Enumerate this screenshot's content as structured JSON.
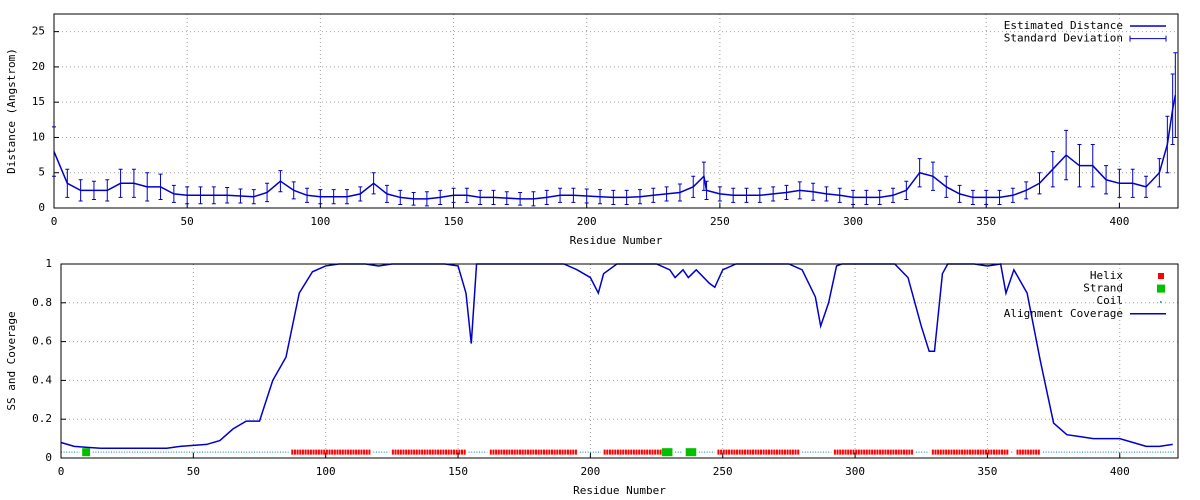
{
  "chart_data": [
    {
      "type": "line",
      "xlabel": "Residue Number",
      "ylabel": "Distance (Angstrom)",
      "xlim": [
        0,
        422
      ],
      "ylim": [
        0,
        27.5
      ],
      "xticks": [
        0,
        50,
        100,
        150,
        200,
        250,
        300,
        350,
        400
      ],
      "yticks": [
        0,
        5,
        10,
        15,
        20,
        25
      ],
      "grid": true,
      "legend": "top-right",
      "x": [
        0,
        5,
        10,
        15,
        20,
        25,
        30,
        35,
        40,
        45,
        50,
        55,
        60,
        65,
        70,
        75,
        80,
        85,
        90,
        95,
        100,
        105,
        110,
        115,
        120,
        125,
        130,
        135,
        140,
        145,
        150,
        155,
        160,
        165,
        170,
        175,
        180,
        185,
        190,
        195,
        200,
        205,
        210,
        215,
        220,
        225,
        230,
        235,
        240,
        244,
        245,
        250,
        255,
        260,
        265,
        270,
        275,
        280,
        285,
        290,
        295,
        300,
        305,
        310,
        315,
        320,
        325,
        330,
        335,
        340,
        345,
        350,
        355,
        360,
        365,
        370,
        375,
        380,
        385,
        390,
        395,
        400,
        405,
        410,
        415,
        418,
        420,
        421
      ],
      "series": [
        {
          "name": "Estimated Distance",
          "color": "#0000cc",
          "values": [
            8,
            3.5,
            2.5,
            2.5,
            2.5,
            3.5,
            3.5,
            3,
            3,
            2,
            1.8,
            1.8,
            1.8,
            1.8,
            1.7,
            1.6,
            2.2,
            3.8,
            2.5,
            1.8,
            1.6,
            1.6,
            1.6,
            2,
            3.5,
            2,
            1.5,
            1.3,
            1.3,
            1.5,
            1.8,
            1.8,
            1.5,
            1.5,
            1.4,
            1.3,
            1.3,
            1.5,
            1.8,
            1.8,
            1.7,
            1.6,
            1.5,
            1.5,
            1.6,
            1.8,
            2,
            2.2,
            3,
            4.5,
            2.5,
            2,
            1.8,
            1.8,
            1.8,
            2,
            2.2,
            2.5,
            2.3,
            2,
            1.8,
            1.5,
            1.5,
            1.5,
            1.8,
            2.5,
            5,
            4.5,
            3,
            2,
            1.5,
            1.5,
            1.5,
            1.8,
            2.5,
            3.5,
            5.5,
            7.5,
            6,
            6,
            4,
            3.5,
            3.5,
            3,
            5,
            9,
            14,
            16
          ]
        },
        {
          "name": "Standard Deviation",
          "color": "#0000cc",
          "errors": [
            3.5,
            2,
            1.5,
            1.3,
            1.5,
            2,
            2,
            2,
            1.8,
            1.2,
            1.2,
            1.2,
            1.2,
            1.1,
            1,
            1,
            1.3,
            1.5,
            1.2,
            1,
            1,
            1,
            1,
            1,
            1.5,
            1.2,
            1,
            0.9,
            1,
            1,
            1,
            1,
            1,
            1,
            0.9,
            0.9,
            1,
            1,
            1,
            1,
            1,
            1,
            1,
            1,
            1,
            1,
            1,
            1.2,
            1.5,
            2,
            1.3,
            1,
            1,
            1,
            1,
            1,
            1,
            1.2,
            1.2,
            1,
            1,
            1,
            1,
            1,
            1,
            1.3,
            2,
            2,
            1.5,
            1.2,
            1,
            1,
            1,
            1,
            1.2,
            1.5,
            2.5,
            3.5,
            3,
            3,
            2,
            2,
            2,
            1.5,
            2,
            4,
            5,
            6
          ]
        }
      ]
    },
    {
      "type": "line",
      "xlabel": "Residue Number",
      "ylabel": "SS and Coverage",
      "xlim": [
        0,
        422
      ],
      "ylim": [
        0,
        1
      ],
      "xticks": [
        0,
        50,
        100,
        150,
        200,
        250,
        300,
        350,
        400
      ],
      "yticks": [
        0,
        0.2,
        0.4,
        0.6,
        0.8,
        1
      ],
      "grid": true,
      "legend": "top-right",
      "ss": [
        {
          "name": "Helix",
          "color": "#ff0000",
          "y": 0.03,
          "ranges": [
            [
              87,
              117
            ],
            [
              125,
              153
            ],
            [
              162,
              195
            ],
            [
              205,
              227
            ],
            [
              248,
              279
            ],
            [
              292,
              322
            ],
            [
              329,
              358
            ],
            [
              361,
              370
            ]
          ]
        },
        {
          "name": "Strand",
          "color": "#00c000",
          "y": 0.03,
          "ranges": [
            [
              8,
              11
            ],
            [
              227,
              231
            ],
            [
              236,
              240
            ]
          ]
        },
        {
          "name": "Coil",
          "color": "#0080a0",
          "y": 0.03,
          "ranges": [
            [
              0,
              7
            ],
            [
              12,
              86
            ],
            [
              118,
              124
            ],
            [
              154,
              161
            ],
            [
              196,
              204
            ],
            [
              232,
              235
            ],
            [
              241,
              247
            ],
            [
              280,
              291
            ],
            [
              323,
              328
            ],
            [
              359,
              360
            ],
            [
              371,
              421
            ]
          ]
        }
      ],
      "x": [
        0,
        5,
        10,
        15,
        20,
        25,
        30,
        35,
        40,
        45,
        50,
        55,
        60,
        65,
        70,
        75,
        80,
        85,
        90,
        95,
        100,
        105,
        110,
        115,
        120,
        125,
        130,
        135,
        140,
        145,
        150,
        153,
        155,
        157,
        160,
        165,
        170,
        175,
        180,
        185,
        190,
        195,
        200,
        203,
        205,
        210,
        215,
        220,
        225,
        230,
        232,
        235,
        237,
        240,
        245,
        247,
        250,
        255,
        260,
        265,
        270,
        275,
        280,
        285,
        287,
        290,
        293,
        295,
        300,
        305,
        310,
        315,
        320,
        323,
        325,
        328,
        330,
        333,
        335,
        340,
        345,
        350,
        355,
        357,
        360,
        365,
        370,
        375,
        380,
        385,
        390,
        395,
        400,
        405,
        410,
        415,
        420
      ],
      "series": [
        {
          "name": "Alignment Coverage",
          "color": "#0000cc",
          "values": [
            0.08,
            0.06,
            0.055,
            0.05,
            0.05,
            0.05,
            0.05,
            0.05,
            0.05,
            0.06,
            0.065,
            0.07,
            0.09,
            0.15,
            0.19,
            0.19,
            0.4,
            0.52,
            0.85,
            0.96,
            0.99,
            1,
            1,
            1,
            0.99,
            1,
            1,
            1,
            1,
            1,
            0.99,
            0.85,
            0.59,
            1,
            1,
            1,
            1,
            1,
            1,
            1,
            1,
            0.97,
            0.93,
            0.85,
            0.95,
            1,
            1,
            1,
            1,
            0.97,
            0.93,
            0.97,
            0.93,
            0.97,
            0.9,
            0.88,
            0.97,
            1,
            1,
            1,
            1,
            1,
            0.97,
            0.83,
            0.68,
            0.8,
            0.99,
            1,
            1,
            1,
            1,
            1,
            0.93,
            0.78,
            0.68,
            0.55,
            0.55,
            0.95,
            1,
            1,
            1,
            0.99,
            1,
            0.85,
            0.97,
            0.85,
            0.5,
            0.18,
            0.12,
            0.11,
            0.1,
            0.1,
            0.1,
            0.08,
            0.06,
            0.06,
            0.07
          ]
        }
      ]
    }
  ]
}
